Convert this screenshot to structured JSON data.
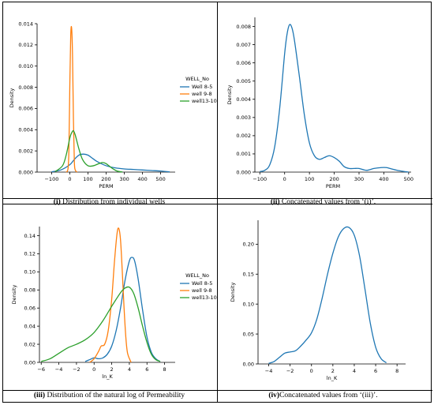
{
  "captions": [
    {
      "label": "(i)",
      "text": " Distribution from individual wells"
    },
    {
      "label": "(ii)",
      "text": " Concatenated values from ‘(i)’."
    },
    {
      "label": "(iii)",
      "text": " Distribution of the natural log of Permeability"
    },
    {
      "label": "(iv)",
      "text": "Concatenated values from ‘(iii)’."
    }
  ],
  "colors": {
    "well_8_5": "#1f77b4",
    "well_9_8": "#ff7f0e",
    "well_13_10": "#2ca02c"
  },
  "chart_data": [
    {
      "type": "line",
      "xlabel": "PERM",
      "ylabel": "Density",
      "xlim": [
        -180,
        580
      ],
      "ylim": [
        0,
        0.014
      ],
      "xticks": [
        -100,
        0,
        100,
        200,
        300,
        400,
        500
      ],
      "xtick_labels": [
        "−100",
        "0",
        "100",
        "200",
        "300",
        "400",
        "500"
      ],
      "yticks": [
        0,
        0.002,
        0.004,
        0.006,
        0.008,
        0.01,
        0.012,
        0.014
      ],
      "ytick_labels": [
        "0.000",
        "0.002",
        "0.004",
        "0.006",
        "0.008",
        "0.010",
        "0.012",
        "0.014"
      ],
      "legend": {
        "title": "WELL_No",
        "position": "center-right"
      },
      "series": [
        {
          "name": "Well 8-5",
          "color": "#1f77b4",
          "x": [
            -100,
            -50,
            0,
            25,
            50,
            75,
            100,
            125,
            150,
            200,
            250,
            300,
            350,
            400,
            450,
            500,
            550
          ],
          "y": [
            3e-05,
            0.0002,
            0.0007,
            0.0012,
            0.0016,
            0.0017,
            0.0016,
            0.0013,
            0.001,
            0.0006,
            0.0004,
            0.0003,
            0.00025,
            0.0002,
            0.00015,
            0.0001,
            2e-05
          ]
        },
        {
          "name": "well 9-8",
          "color": "#ff7f0e",
          "x": [
            -20,
            -10,
            -5,
            0,
            5,
            10,
            15,
            20,
            25,
            30,
            40
          ],
          "y": [
            0,
            0.0003,
            0.002,
            0.008,
            0.0128,
            0.0136,
            0.011,
            0.005,
            0.001,
            0.0002,
            0
          ]
        },
        {
          "name": "well13-10",
          "color": "#2ca02c",
          "x": [
            -80,
            -40,
            -20,
            0,
            10,
            20,
            30,
            50,
            70,
            100,
            130,
            160,
            180,
            200,
            230,
            260,
            290
          ],
          "y": [
            5e-05,
            0.0006,
            0.0016,
            0.0032,
            0.0037,
            0.0039,
            0.0035,
            0.0022,
            0.0012,
            0.0006,
            0.0006,
            0.0008,
            0.0009,
            0.0008,
            0.0004,
            0.0001,
            1e-05
          ]
        }
      ]
    },
    {
      "type": "line",
      "xlabel": "PERM",
      "ylabel": "Density",
      "xlim": [
        -120,
        510
      ],
      "ylim": [
        0,
        0.0085
      ],
      "xticks": [
        -100,
        0,
        100,
        200,
        300,
        400,
        500
      ],
      "xtick_labels": [
        "−100",
        "0",
        "100",
        "200",
        "300",
        "400",
        "500"
      ],
      "yticks": [
        0,
        0.001,
        0.002,
        0.003,
        0.004,
        0.005,
        0.006,
        0.007,
        0.008
      ],
      "ytick_labels": [
        "0.000",
        "0.001",
        "0.002",
        "0.003",
        "0.004",
        "0.005",
        "0.006",
        "0.007",
        "0.008"
      ],
      "series": [
        {
          "color": "#1f77b4",
          "x": [
            -100,
            -80,
            -60,
            -40,
            -20,
            0,
            10,
            20,
            30,
            40,
            60,
            80,
            100,
            120,
            140,
            160,
            180,
            200,
            220,
            240,
            260,
            280,
            300,
            330,
            360,
            390,
            410,
            430,
            460,
            490,
            500
          ],
          "y": [
            3e-05,
            0.0001,
            0.0004,
            0.0014,
            0.0035,
            0.0065,
            0.0076,
            0.0081,
            0.0079,
            0.0072,
            0.0052,
            0.0031,
            0.0016,
            0.0009,
            0.0007,
            0.0008,
            0.0009,
            0.0008,
            0.0006,
            0.0003,
            0.0002,
            0.0002,
            0.0002,
            0.0001,
            0.0002,
            0.00025,
            0.00025,
            0.00018,
            8e-05,
            2e-05,
            0
          ]
        }
      ]
    },
    {
      "type": "line",
      "xlabel": "ln_K",
      "ylabel": "Density",
      "xlim": [
        -6.2,
        9.2
      ],
      "ylim": [
        0,
        0.15
      ],
      "xticks": [
        -6,
        -4,
        -2,
        0,
        2,
        4,
        6,
        8
      ],
      "xtick_labels": [
        "−6",
        "−4",
        "−2",
        "0",
        "2",
        "4",
        "6",
        "8"
      ],
      "yticks": [
        0,
        0.02,
        0.04,
        0.06,
        0.08,
        0.1,
        0.12,
        0.14
      ],
      "ytick_labels": [
        "0.00",
        "0.02",
        "0.04",
        "0.06",
        "0.08",
        "0.10",
        "0.12",
        "0.14"
      ],
      "legend": {
        "title": "WELL_No",
        "position": "center-right"
      },
      "series": [
        {
          "name": "Well 8-5",
          "color": "#1f77b4",
          "x": [
            -1,
            -0.5,
            0,
            0.5,
            1,
            1.5,
            2,
            2.5,
            3,
            3.5,
            4,
            4.3,
            4.6,
            5,
            5.5,
            6,
            6.5,
            7,
            7.5
          ],
          "y": [
            0.001,
            0.003,
            0.005,
            0.004,
            0.005,
            0.009,
            0.018,
            0.035,
            0.06,
            0.09,
            0.112,
            0.116,
            0.112,
            0.092,
            0.058,
            0.028,
            0.011,
            0.004,
            0.001
          ]
        },
        {
          "name": "well 9-8",
          "color": "#ff7f0e",
          "x": [
            -0.5,
            0,
            0.5,
            0.8,
            1.2,
            1.6,
            2,
            2.3,
            2.6,
            2.8,
            3,
            3.2,
            3.4,
            3.6,
            3.8,
            4.2
          ],
          "y": [
            0,
            0.004,
            0.012,
            0.018,
            0.02,
            0.035,
            0.07,
            0.11,
            0.142,
            0.148,
            0.135,
            0.1,
            0.06,
            0.028,
            0.01,
            0
          ]
        },
        {
          "name": "well13-10",
          "color": "#2ca02c",
          "x": [
            -6,
            -5,
            -4,
            -3,
            -2,
            -1,
            0,
            1,
            2,
            3,
            3.5,
            4,
            4.5,
            5,
            5.5,
            6,
            6.5,
            7,
            7.5
          ],
          "y": [
            0.001,
            0.004,
            0.01,
            0.016,
            0.02,
            0.025,
            0.033,
            0.046,
            0.062,
            0.077,
            0.082,
            0.083,
            0.076,
            0.06,
            0.04,
            0.022,
            0.009,
            0.003,
            0.001
          ]
        }
      ]
    },
    {
      "type": "line",
      "xlabel": "ln_K",
      "ylabel": "Density",
      "xlim": [
        -5,
        8.8
      ],
      "ylim": [
        0,
        0.24
      ],
      "xticks": [
        -4,
        -2,
        0,
        2,
        4,
        6,
        8
      ],
      "xtick_labels": [
        "−4",
        "−2",
        "0",
        "2",
        "4",
        "6",
        "8"
      ],
      "yticks": [
        0,
        0.05,
        0.1,
        0.15,
        0.2
      ],
      "ytick_labels": [
        "0.00",
        "0.05",
        "0.10",
        "0.15",
        "0.20"
      ],
      "series": [
        {
          "color": "#1f77b4",
          "x": [
            -4,
            -3.5,
            -3,
            -2.5,
            -2,
            -1.5,
            -1,
            -0.5,
            0,
            0.5,
            1,
            1.5,
            2,
            2.5,
            3,
            3.5,
            4,
            4.5,
            5,
            5.5,
            6,
            6.5,
            7
          ],
          "y": [
            0.001,
            0.004,
            0.011,
            0.018,
            0.02,
            0.022,
            0.03,
            0.04,
            0.052,
            0.075,
            0.11,
            0.15,
            0.185,
            0.212,
            0.226,
            0.228,
            0.215,
            0.18,
            0.125,
            0.068,
            0.028,
            0.009,
            0.002
          ]
        }
      ]
    }
  ]
}
